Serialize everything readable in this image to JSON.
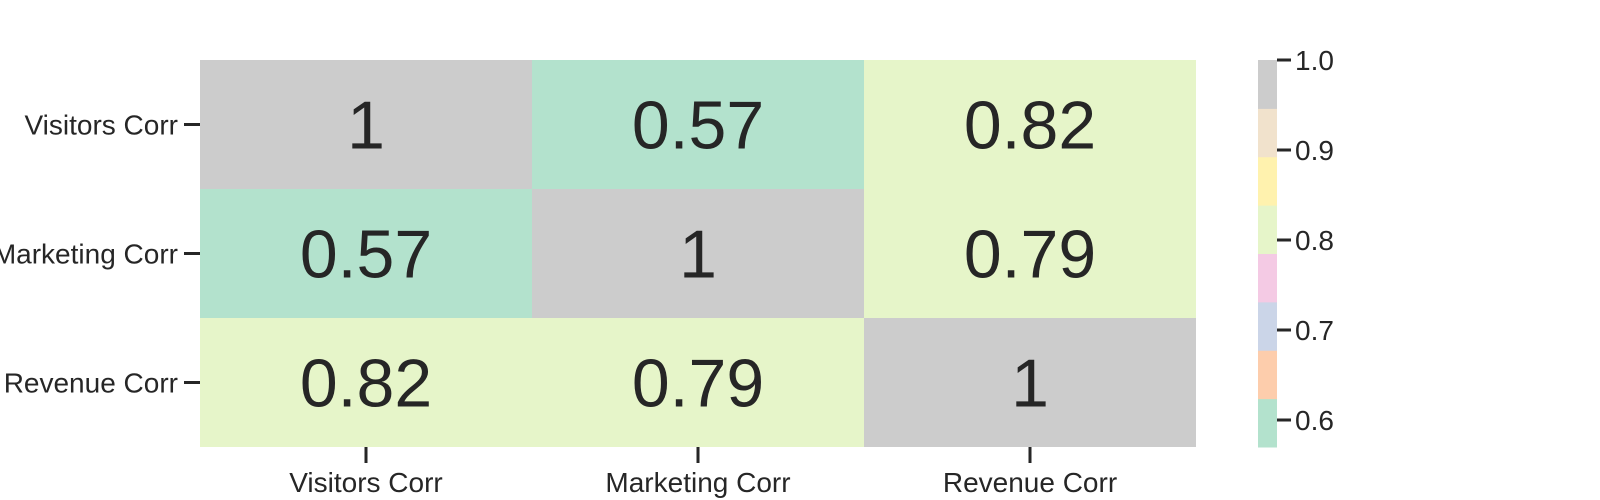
{
  "chart_data": {
    "type": "heatmap",
    "title": "",
    "xlabel": "",
    "ylabel": "",
    "x_categories": [
      "Visitors Corr",
      "Marketing Corr",
      "Revenue Corr"
    ],
    "y_categories": [
      "Visitors Corr",
      "Marketing Corr",
      "Revenue Corr"
    ],
    "matrix": [
      [
        1,
        0.57,
        0.82
      ],
      [
        0.57,
        1,
        0.79
      ],
      [
        0.82,
        0.79,
        1
      ]
    ],
    "cell_labels": [
      [
        "1",
        "0.57",
        "0.82"
      ],
      [
        "0.57",
        "1",
        "0.79"
      ],
      [
        "0.82",
        "0.79",
        "1"
      ]
    ],
    "colorbar": {
      "range": [
        0.57,
        1.0
      ],
      "ticks": [
        0.6,
        0.7,
        0.8,
        0.9,
        1.0
      ],
      "tick_labels": [
        "0.6",
        "0.7",
        "0.8",
        "0.9",
        "1.0"
      ],
      "palette": [
        "#b3e2cd",
        "#fdcdac",
        "#cbd5e8",
        "#f4cae4",
        "#e6f5c9",
        "#fff2ae",
        "#f1e2cc",
        "#cccccc"
      ]
    },
    "grid": false,
    "legend": "colorbar-right"
  }
}
